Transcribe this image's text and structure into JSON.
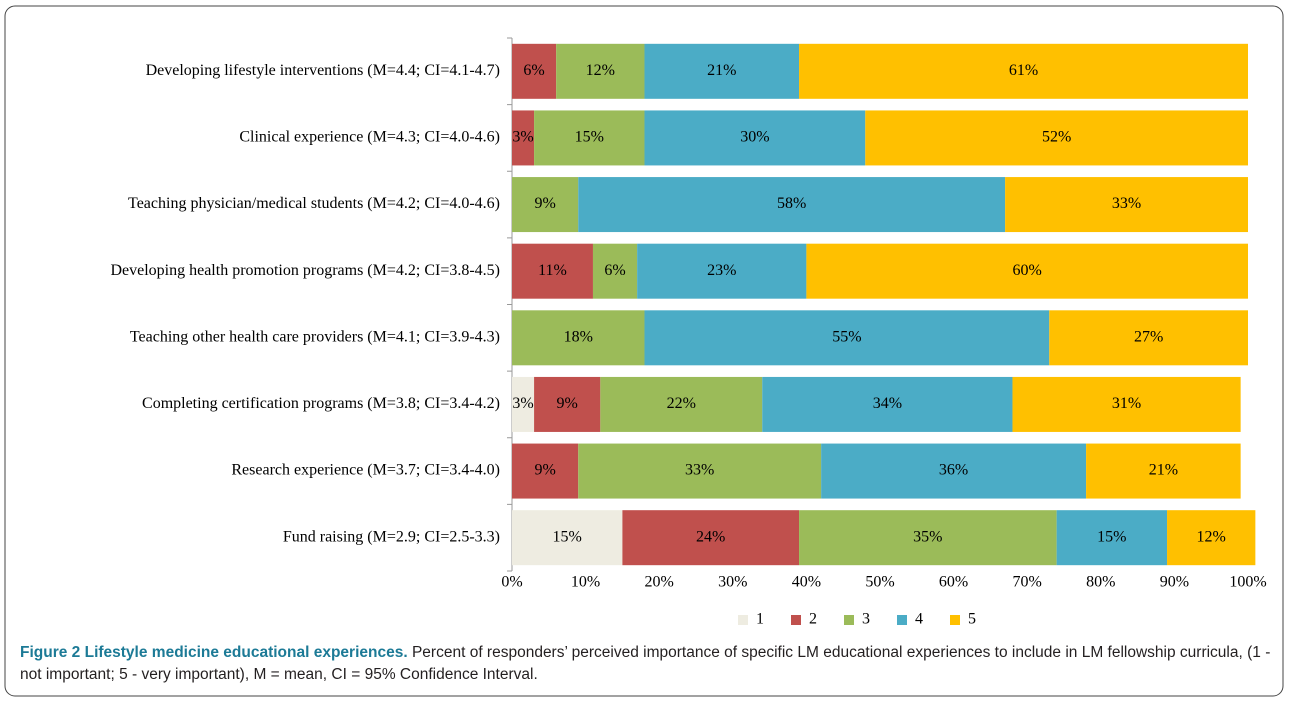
{
  "chart_data": {
    "type": "stacked_barh",
    "categories": [
      "Developing lifestyle interventions (M=4.4; CI=4.1-4.7)",
      "Clinical experience (M=4.3; CI=4.0-4.6)",
      "Teaching  physician/medical students (M=4.2; CI=4.0-4.6)",
      "Developing health promotion programs (M=4.2; CI=3.8-4.5)",
      "Teaching other health care providers (M=4.1; CI=3.9-4.3)",
      "Completing certification programs (M=3.8; CI=3.4-4.2)",
      "Research experience (M=3.7; CI=3.4-4.0)",
      "Fund raising (M=2.9; CI=2.5-3.3)"
    ],
    "series": [
      {
        "name": "1",
        "color": "#eeece1",
        "values": [
          0,
          0,
          0,
          0,
          0,
          3,
          0,
          15
        ],
        "value_labels": [
          null,
          null,
          null,
          null,
          null,
          "3%",
          null,
          "15%"
        ]
      },
      {
        "name": "2",
        "color": "#c0504d",
        "values": [
          6,
          3,
          0,
          11,
          0,
          9,
          9,
          24
        ],
        "value_labels": [
          "6%",
          "3%",
          null,
          "11%",
          null,
          "9%",
          "9%",
          "24%"
        ]
      },
      {
        "name": "3",
        "color": "#9bbb59",
        "values": [
          12,
          15,
          9,
          6,
          18,
          22,
          33,
          35
        ],
        "value_labels": [
          "12%",
          "15%",
          "9%",
          "6%",
          "18%",
          "22%",
          "33%",
          "35%"
        ]
      },
      {
        "name": "4",
        "color": "#4bacc6",
        "values": [
          21,
          30,
          58,
          23,
          55,
          34,
          36,
          15
        ],
        "value_labels": [
          "21%",
          "30%",
          "58%",
          "23%",
          "55%",
          "34%",
          "36%",
          "15%"
        ]
      },
      {
        "name": "5",
        "color": "#ffc000",
        "values": [
          61,
          52,
          33,
          60,
          27,
          31,
          21,
          12
        ],
        "value_labels": [
          "61%",
          "52%",
          "33%",
          "60%",
          "27%",
          "31%",
          "21%",
          "12%"
        ]
      }
    ],
    "xlim": [
      0,
      100
    ],
    "xticks": [
      {
        "value": 0,
        "label": "0%"
      },
      {
        "value": 10,
        "label": "10%"
      },
      {
        "value": 20,
        "label": "20%"
      },
      {
        "value": 30,
        "label": "30%"
      },
      {
        "value": 40,
        "label": "40%"
      },
      {
        "value": 50,
        "label": "50%"
      },
      {
        "value": 60,
        "label": "60%"
      },
      {
        "value": 70,
        "label": "70%"
      },
      {
        "value": 80,
        "label": "80%"
      },
      {
        "value": 90,
        "label": "90%"
      },
      {
        "value": 100,
        "label": "100%"
      }
    ],
    "legend": "bottom",
    "caption_title": "Figure 2 Lifestyle medicine educational experiences.",
    "caption": "Percent of responders’ perceived importance of specific LM educational experiences to include in LM fellowship curricula, (1 - not important; 5 - very important), M = mean, CI = 95% Confidence Interval."
  }
}
